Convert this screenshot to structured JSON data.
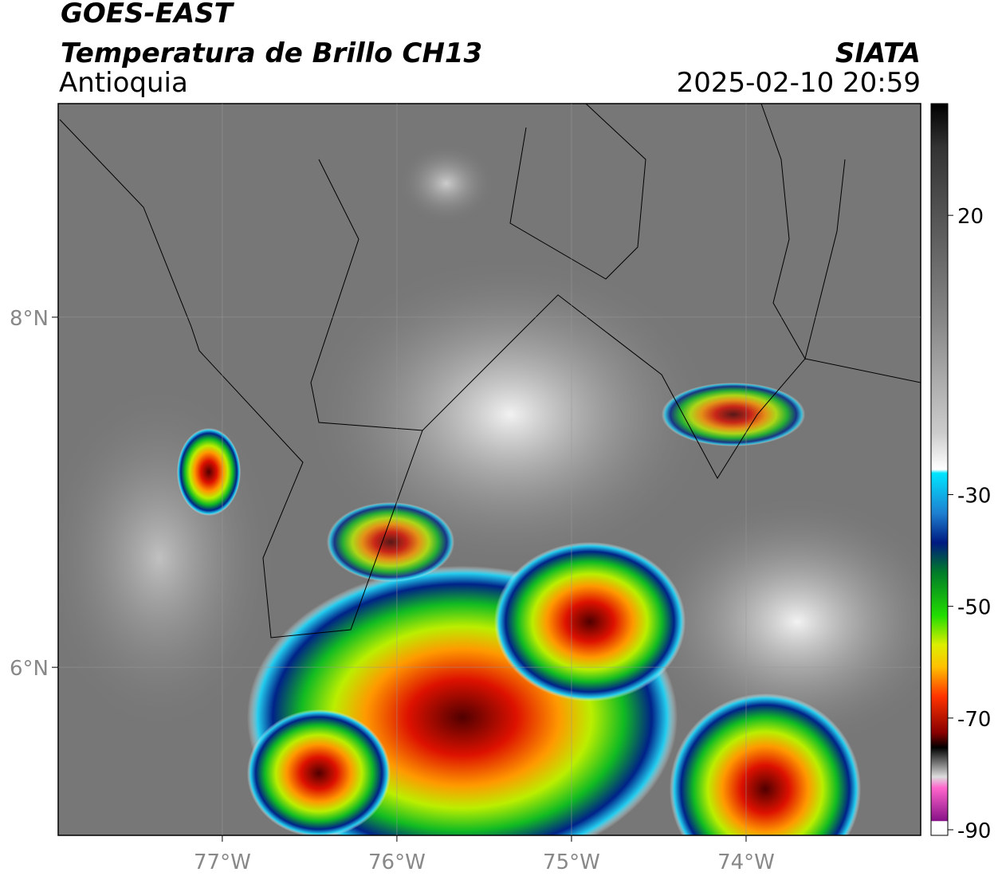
{
  "header": {
    "title": "GOES-EAST",
    "subtitle": "Temperatura de Brillo CH13",
    "region": "Antioquia",
    "source": "SIATA",
    "datetime": "2025-02-10 20:59"
  },
  "map": {
    "xlim": [
      -77.94,
      -73.0
    ],
    "ylim": [
      5.04,
      9.22
    ],
    "xticks": [
      {
        "value": -77,
        "label": "77°W"
      },
      {
        "value": -76,
        "label": "76°W"
      },
      {
        "value": -75,
        "label": "75°W"
      },
      {
        "value": -74,
        "label": "74°W"
      }
    ],
    "yticks": [
      {
        "value": 8,
        "label": "8°N"
      },
      {
        "value": 6,
        "label": "6°N"
      }
    ],
    "grid": true
  },
  "colorbar": {
    "clim": [
      -91,
      40
    ],
    "ticks": [
      20,
      -30,
      -50,
      -70,
      -90
    ]
  }
}
